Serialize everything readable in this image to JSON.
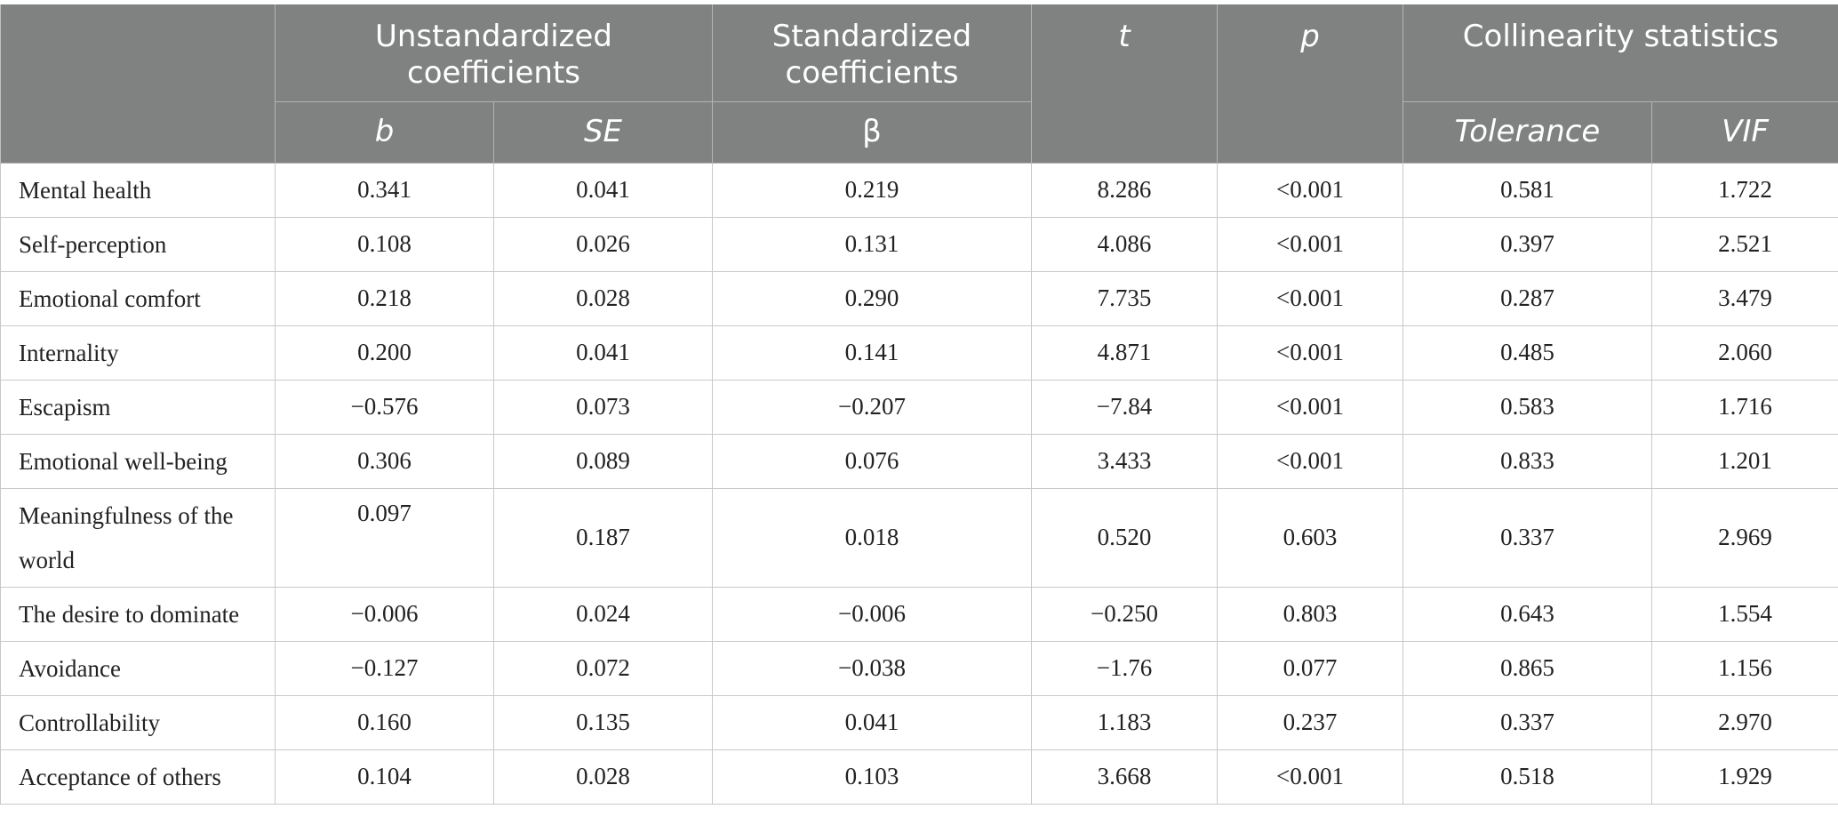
{
  "header": {
    "unstandardized": "Unstandardized coefficients",
    "standardized": "Standardized coefficients",
    "t": "t",
    "p": "p",
    "collinearity": "Collinearity statistics",
    "b": "b",
    "se": "SE",
    "beta": "β",
    "tolerance": "Tolerance",
    "vif": "VIF"
  },
  "rows": [
    {
      "label": "Mental health",
      "b": "0.341",
      "se": "0.041",
      "beta": "0.219",
      "t": "8.286",
      "p": "<0.001",
      "tol": "0.581",
      "vif": "1.722"
    },
    {
      "label": "Self-perception",
      "b": "0.108",
      "se": "0.026",
      "beta": "0.131",
      "t": "4.086",
      "p": "<0.001",
      "tol": "0.397",
      "vif": "2.521"
    },
    {
      "label": "Emotional comfort",
      "b": "0.218",
      "se": "0.028",
      "beta": "0.290",
      "t": "7.735",
      "p": "<0.001",
      "tol": "0.287",
      "vif": "3.479"
    },
    {
      "label": "Internality",
      "b": "0.200",
      "se": "0.041",
      "beta": "0.141",
      "t": "4.871",
      "p": "<0.001",
      "tol": "0.485",
      "vif": "2.060"
    },
    {
      "label": "Escapism",
      "b": "−0.576",
      "se": "0.073",
      "beta": "−0.207",
      "t": "−7.84",
      "p": "<0.001",
      "tol": "0.583",
      "vif": "1.716"
    },
    {
      "label": "Emotional well-being",
      "b": "0.306",
      "se": "0.089",
      "beta": "0.076",
      "t": "3.433",
      "p": "<0.001",
      "tol": "0.833",
      "vif": "1.201"
    },
    {
      "label": "Meaningfulness of the world",
      "b": "0.097",
      "se": "0.187",
      "beta": "0.018",
      "t": "0.520",
      "p": "0.603",
      "tol": "0.337",
      "vif": "2.969"
    },
    {
      "label": "The desire to dominate",
      "b": "−0.006",
      "se": "0.024",
      "beta": "−0.006",
      "t": "−0.250",
      "p": "0.803",
      "tol": "0.643",
      "vif": "1.554"
    },
    {
      "label": "Avoidance",
      "b": "−0.127",
      "se": "0.072",
      "beta": "−0.038",
      "t": "−1.76",
      "p": "0.077",
      "tol": "0.865",
      "vif": "1.156"
    },
    {
      "label": "Controllability",
      "b": "0.160",
      "se": "0.135",
      "beta": "0.041",
      "t": "1.183",
      "p": "0.237",
      "tol": "0.337",
      "vif": "2.970"
    },
    {
      "label": "Acceptance of others",
      "b": "0.104",
      "se": "0.028",
      "beta": "0.103",
      "t": "3.668",
      "p": "<0.001",
      "tol": "0.518",
      "vif": "1.929"
    }
  ]
}
